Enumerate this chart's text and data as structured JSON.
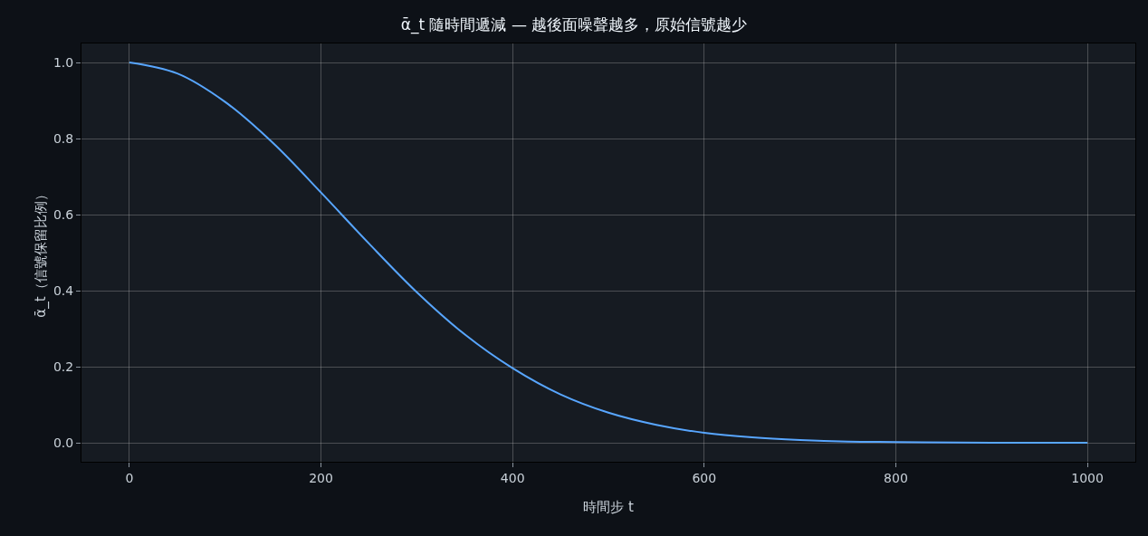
{
  "chart_data": {
    "type": "line",
    "title": "ᾱ_t 隨時間遞減 — 越後面噪聲越多，原始信號越少",
    "xlabel": "時間步 t",
    "ylabel": "ᾱ_t（信號保留比例）",
    "x": [
      0,
      50,
      100,
      150,
      200,
      250,
      300,
      350,
      400,
      450,
      500,
      550,
      600,
      650,
      700,
      750,
      800,
      900,
      1000
    ],
    "series": [
      {
        "color": "#58a6ff",
        "values": [
          1.0,
          0.971,
          0.896,
          0.788,
          0.658,
          0.524,
          0.396,
          0.285,
          0.196,
          0.127,
          0.079,
          0.047,
          0.026,
          0.014,
          0.007,
          0.003,
          0.002,
          0.0,
          0.0
        ]
      }
    ],
    "xlim": [
      -50,
      1050
    ],
    "xticks": [
      0,
      200,
      400,
      600,
      800,
      1000
    ],
    "ylim": [
      -0.05,
      1.05
    ],
    "yticks": [
      {
        "value": 0,
        "label": "0.0"
      },
      {
        "value": 0.2,
        "label": "0.2"
      },
      {
        "value": 0.4,
        "label": "0.4"
      },
      {
        "value": 0.6,
        "label": "0.6"
      },
      {
        "value": 0.8,
        "label": "0.8"
      },
      {
        "value": 1,
        "label": "1.0"
      }
    ],
    "grid": true,
    "marker": "none",
    "line_style": "solid"
  }
}
